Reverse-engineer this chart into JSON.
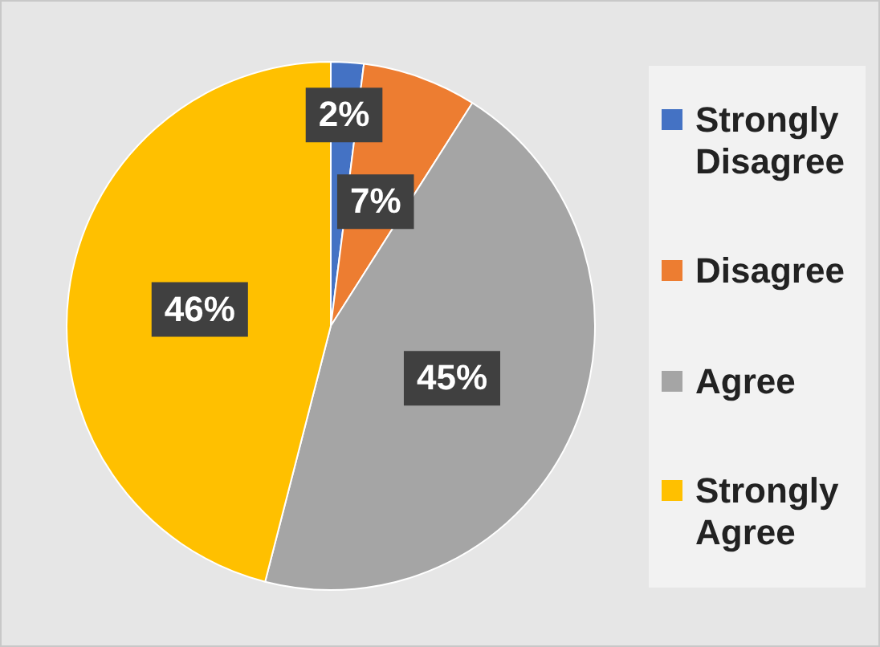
{
  "chart_data": {
    "type": "pie",
    "categories": [
      "Strongly Disagree",
      "Disagree",
      "Agree",
      "Strongly Agree"
    ],
    "values": [
      2,
      7,
      45,
      46
    ],
    "colors": [
      "#4472c4",
      "#ed7d31",
      "#a5a5a5",
      "#ffc000"
    ],
    "value_labels": [
      "2%",
      "7%",
      "45%",
      "46%"
    ],
    "legend": "right"
  }
}
